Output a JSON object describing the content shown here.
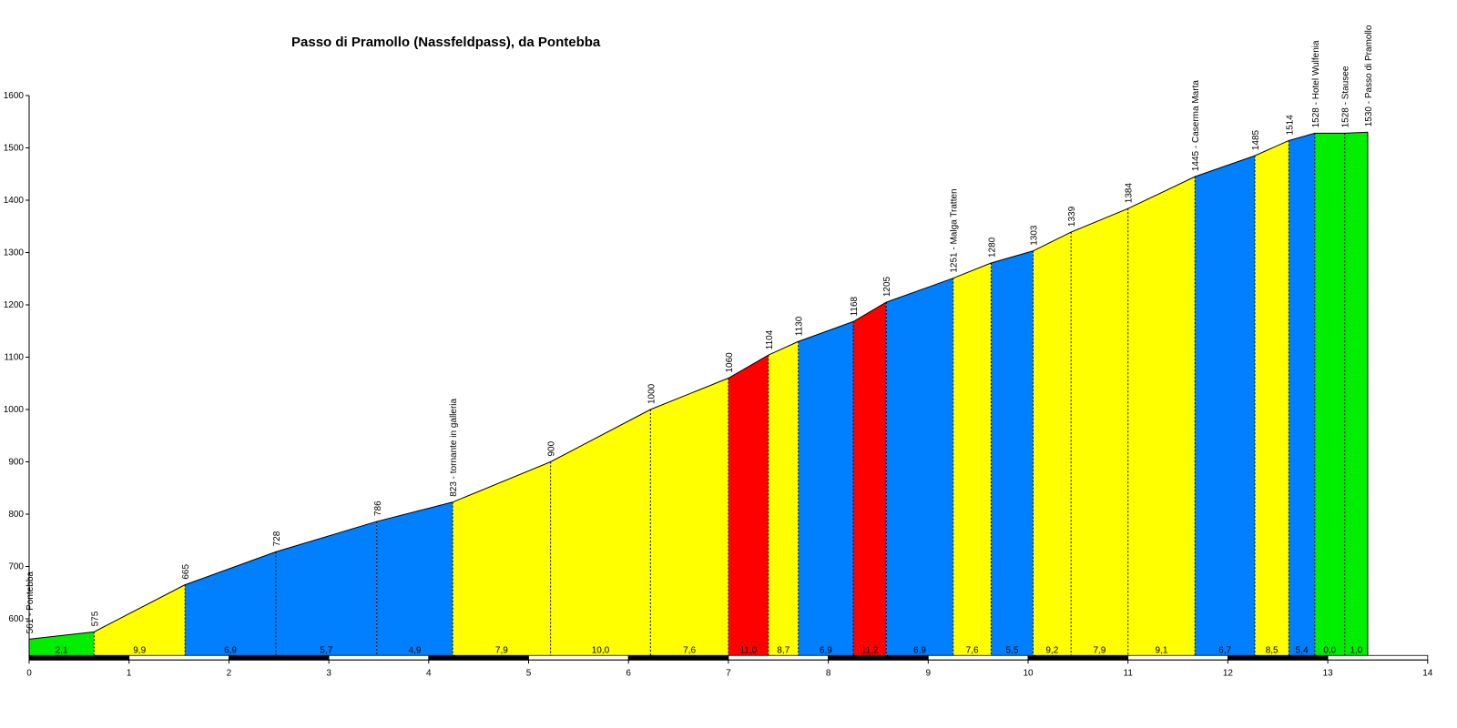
{
  "chart_data": {
    "type": "area",
    "title": "Passo di Pramollo (Nassfeldpass), da Pontebba",
    "xlabel": "",
    "ylabel": "",
    "xlim": [
      0,
      14
    ],
    "ylim": [
      530,
      1600
    ],
    "x_ticks": [
      0,
      1,
      2,
      3,
      4,
      5,
      6,
      7,
      8,
      9,
      10,
      11,
      12,
      13,
      14
    ],
    "y_ticks": [
      600,
      700,
      800,
      900,
      1000,
      1100,
      1200,
      1300,
      1400,
      1500,
      1600
    ],
    "grid": false,
    "legend": "none",
    "colors": {
      "green": "#00ee00",
      "yellow": "#ffff00",
      "blue": "#0080ff",
      "red": "#ff0000"
    },
    "points": [
      {
        "km": 0.0,
        "alt": 561,
        "label": "561 - Pontebba"
      },
      {
        "km": 0.65,
        "alt": 575,
        "label": "575"
      },
      {
        "km": 1.56,
        "alt": 665,
        "label": "665"
      },
      {
        "km": 2.47,
        "alt": 728,
        "label": "728"
      },
      {
        "km": 3.48,
        "alt": 786,
        "label": "786"
      },
      {
        "km": 4.24,
        "alt": 823,
        "label": "823 - tornante in galleria"
      },
      {
        "km": 5.22,
        "alt": 900,
        "label": "900"
      },
      {
        "km": 6.22,
        "alt": 1000,
        "label": "1000"
      },
      {
        "km": 7.0,
        "alt": 1060,
        "label": "1060"
      },
      {
        "km": 7.4,
        "alt": 1104,
        "label": "1104"
      },
      {
        "km": 7.7,
        "alt": 1130,
        "label": "1130"
      },
      {
        "km": 8.25,
        "alt": 1168,
        "label": "1168"
      },
      {
        "km": 8.58,
        "alt": 1205,
        "label": "1205"
      },
      {
        "km": 9.25,
        "alt": 1251,
        "label": "1251 - Malga Tratten"
      },
      {
        "km": 9.63,
        "alt": 1280,
        "label": "1280"
      },
      {
        "km": 10.05,
        "alt": 1303,
        "label": "1303"
      },
      {
        "km": 10.43,
        "alt": 1339,
        "label": "1339"
      },
      {
        "km": 11.0,
        "alt": 1384,
        "label": "1384"
      },
      {
        "km": 11.67,
        "alt": 1445,
        "label": "1445 - Caserma Marta"
      },
      {
        "km": 12.27,
        "alt": 1485,
        "label": "1485"
      },
      {
        "km": 12.61,
        "alt": 1514,
        "label": "1514"
      },
      {
        "km": 12.87,
        "alt": 1528,
        "label": "1528 - Hotel Wulfenia"
      },
      {
        "km": 13.17,
        "alt": 1528,
        "label": "1528 - Stausee"
      },
      {
        "km": 13.4,
        "alt": 1530,
        "label": "1530 - Passo di Pramollo"
      }
    ],
    "segments": [
      {
        "gradient": "2,1",
        "color": "green"
      },
      {
        "gradient": "9,9",
        "color": "yellow"
      },
      {
        "gradient": "6,9",
        "color": "blue"
      },
      {
        "gradient": "5,7",
        "color": "blue"
      },
      {
        "gradient": "4,9",
        "color": "blue"
      },
      {
        "gradient": "7,9",
        "color": "yellow"
      },
      {
        "gradient": "10,0",
        "color": "yellow"
      },
      {
        "gradient": "7,6",
        "color": "yellow"
      },
      {
        "gradient": "11,0",
        "color": "red"
      },
      {
        "gradient": "8,7",
        "color": "yellow"
      },
      {
        "gradient": "6,9",
        "color": "blue"
      },
      {
        "gradient": "11,2",
        "color": "red"
      },
      {
        "gradient": "6,9",
        "color": "blue"
      },
      {
        "gradient": "7,6",
        "color": "yellow"
      },
      {
        "gradient": "5,5",
        "color": "blue"
      },
      {
        "gradient": "9,2",
        "color": "yellow"
      },
      {
        "gradient": "7,9",
        "color": "yellow"
      },
      {
        "gradient": "9,1",
        "color": "yellow"
      },
      {
        "gradient": "6,7",
        "color": "blue"
      },
      {
        "gradient": "8,5",
        "color": "yellow"
      },
      {
        "gradient": "5,4",
        "color": "blue"
      },
      {
        "gradient": "0,0",
        "color": "green"
      },
      {
        "gradient": "1,0",
        "color": "green"
      }
    ]
  }
}
